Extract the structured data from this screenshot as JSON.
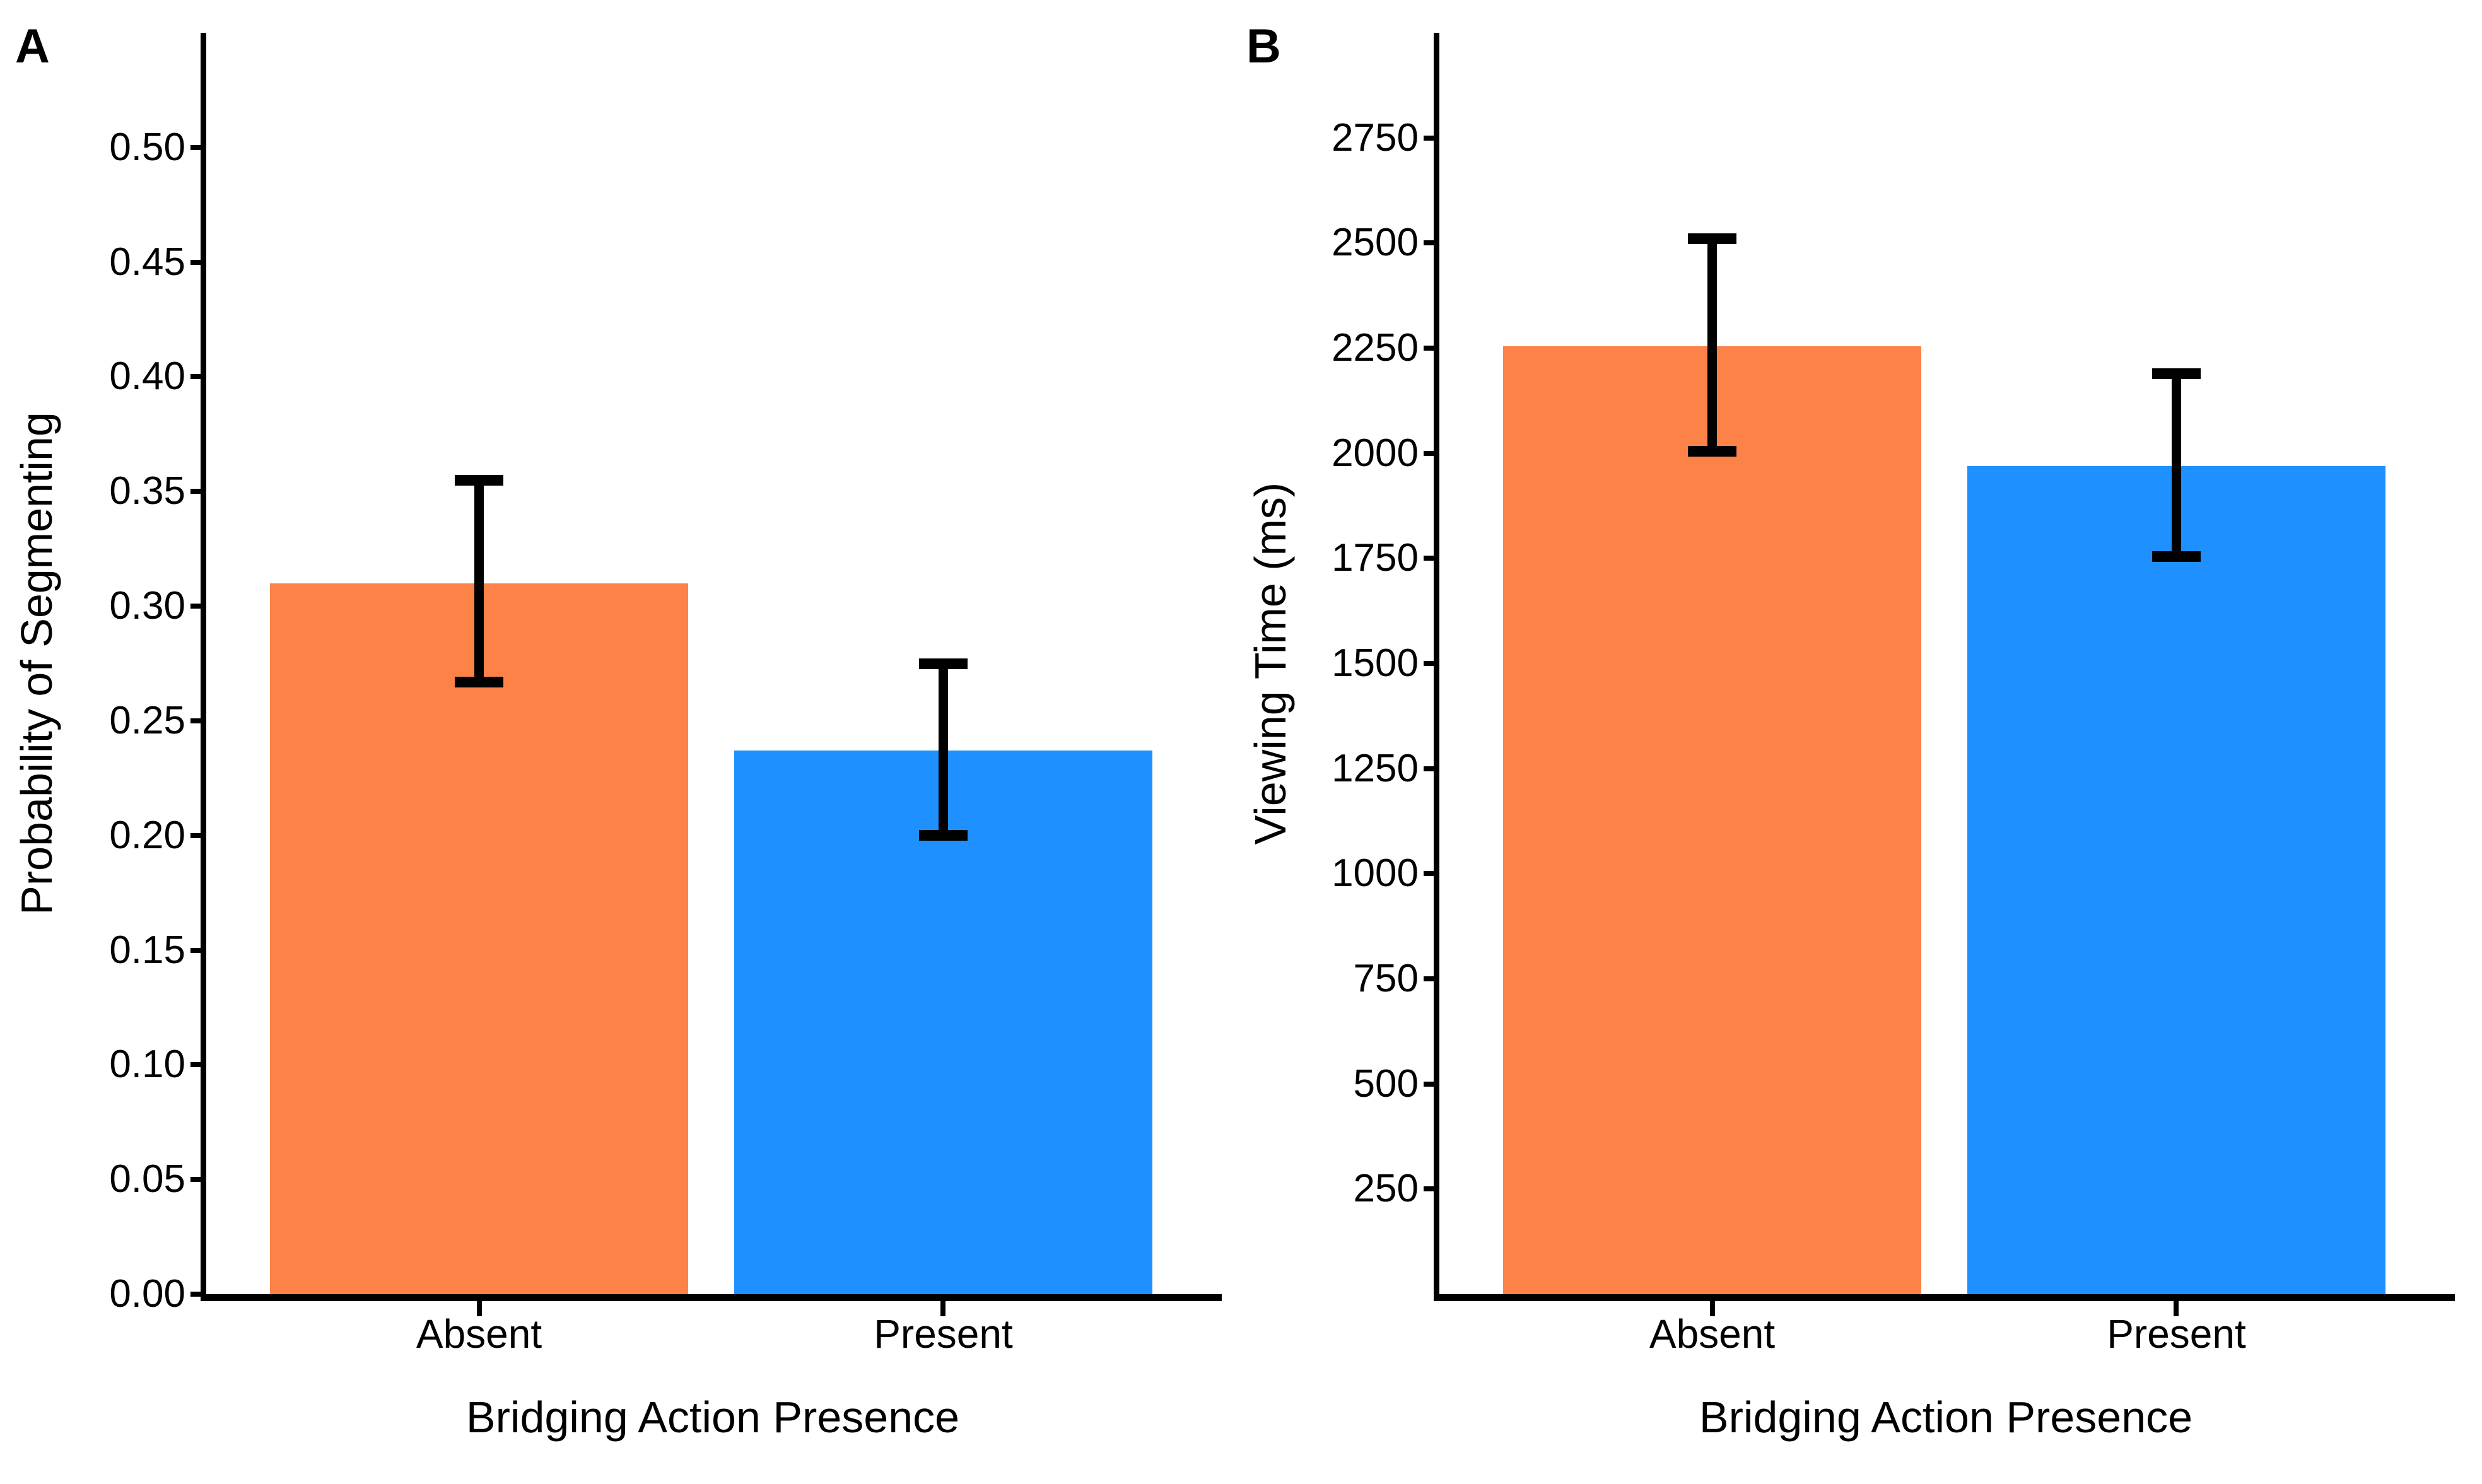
{
  "figure": {
    "background": "#FFFFFF",
    "panels": [
      {
        "label": "A",
        "x_title": "Bridging Action Presence",
        "y_title": "Probability of Segmenting"
      },
      {
        "label": "B",
        "x_title": "Bridging Action Presence",
        "y_title": "Viewing Time (ms)"
      }
    ],
    "colors": {
      "absent_bar": "#FC8248",
      "present_bar": "#1E90FF",
      "axis": "#000000",
      "error_bar": "#000000",
      "text": "#000000"
    }
  },
  "chart_data": [
    {
      "type": "bar",
      "panel_label": "A",
      "title": "",
      "categories": [
        "Absent",
        "Present"
      ],
      "values": [
        0.31,
        0.237
      ],
      "error_low": [
        0.267,
        0.2
      ],
      "error_high": [
        0.355,
        0.275
      ],
      "bar_colors": [
        "#FC8248",
        "#1E90FF"
      ],
      "xlabel": "Bridging Action Presence",
      "ylabel": "Probability of Segmenting",
      "ylim": [
        0,
        0.55
      ],
      "yticks": [
        0,
        0.05,
        0.1,
        0.15,
        0.2,
        0.25,
        0.3,
        0.35,
        0.4,
        0.45,
        0.5
      ],
      "ytick_labels": [
        "0.00",
        "0.05",
        "0.10",
        "0.15",
        "0.20",
        "0.25",
        "0.30",
        "0.35",
        "0.40",
        "0.45",
        "0.50"
      ],
      "grid": false,
      "legend": "none",
      "error_bars": true
    },
    {
      "type": "bar",
      "panel_label": "B",
      "title": "",
      "categories": [
        "Absent",
        "Present"
      ],
      "values": [
        2255,
        1970
      ],
      "error_low": [
        2005,
        1755
      ],
      "error_high": [
        2510,
        2190
      ],
      "bar_colors": [
        "#FC8248",
        "#1E90FF"
      ],
      "xlabel": "Bridging Action Presence",
      "ylabel": "Viewing Time (ms)",
      "ylim": [
        0,
        3000
      ],
      "yticks": [
        250,
        500,
        750,
        1000,
        1250,
        1500,
        1750,
        2000,
        2250,
        2500,
        2750
      ],
      "ytick_labels": [
        "250",
        "500",
        "750",
        "1000",
        "1250",
        "1500",
        "1750",
        "2000",
        "2250",
        "2500",
        "2750"
      ],
      "grid": false,
      "legend": "none",
      "error_bars": true
    }
  ]
}
